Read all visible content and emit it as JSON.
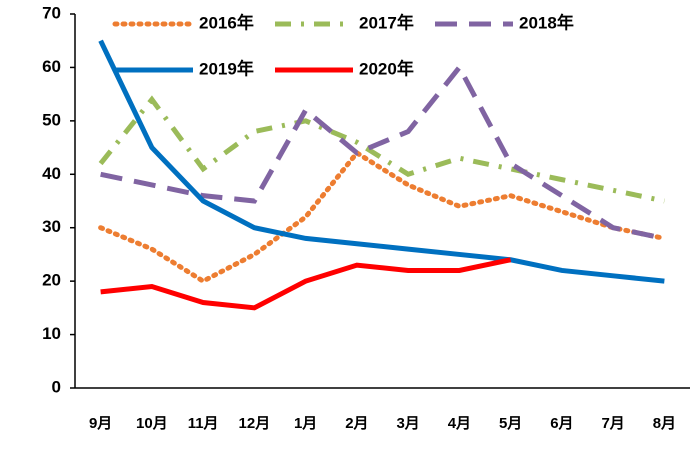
{
  "chart_data": {
    "type": "line",
    "categories": [
      "9月",
      "10月",
      "11月",
      "12月",
      "1月",
      "2月",
      "3月",
      "4月",
      "5月",
      "6月",
      "7月",
      "8月"
    ],
    "series": [
      {
        "name": "2016年",
        "color": "#ED7D31",
        "values": [
          30,
          26,
          20,
          25,
          32,
          44,
          38,
          34,
          36,
          33,
          30,
          28
        ]
      },
      {
        "name": "2017年",
        "color": "#9BBB59",
        "values": [
          42,
          54,
          41,
          48,
          50,
          46,
          40,
          43,
          41,
          39,
          37,
          35
        ]
      },
      {
        "name": "2018年",
        "color": "#8064A2",
        "values": [
          40,
          38,
          36,
          35,
          52,
          44,
          48,
          60,
          42,
          36,
          30,
          28
        ]
      },
      {
        "name": "2019年",
        "color": "#0070C0",
        "values": [
          65,
          45,
          35,
          30,
          28,
          27,
          26,
          25,
          24,
          22,
          21,
          20
        ]
      },
      {
        "name": "2020年",
        "color": "#FF0000",
        "values": [
          18,
          19,
          16,
          15,
          20,
          23,
          22,
          22,
          24,
          null,
          null,
          null
        ]
      }
    ],
    "ylim": [
      0,
      70
    ],
    "yticks": [
      0,
      10,
      20,
      30,
      40,
      50,
      60,
      70
    ],
    "grid": false
  }
}
